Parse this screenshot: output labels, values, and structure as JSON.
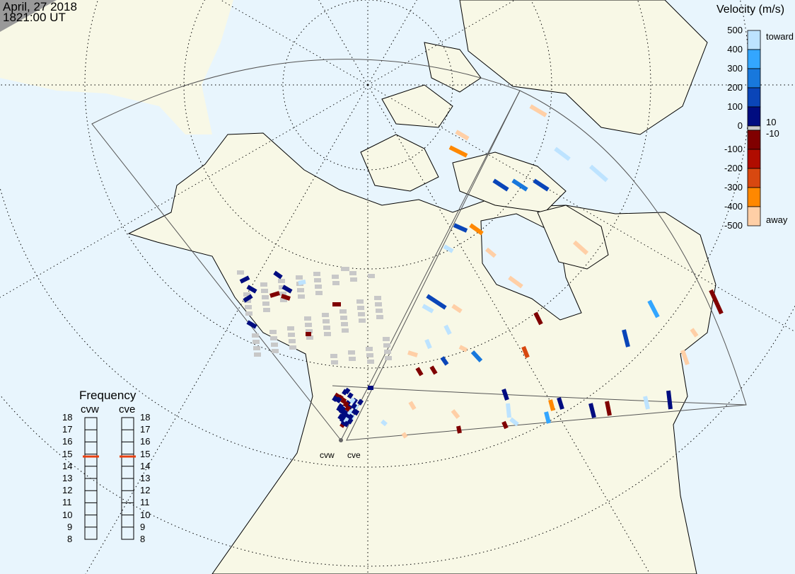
{
  "header": {
    "date": "April, 27 2018",
    "time": "1821:00 UT"
  },
  "colorbar": {
    "title": "Velocity (m/s)",
    "ticks": [
      "500",
      "400",
      "300",
      "200",
      "100",
      "0",
      "-100",
      "-200",
      "-300",
      "-400",
      "-500"
    ],
    "toward_label": "toward",
    "away_label": "away",
    "ground_scatter_upper": "10",
    "ground_scatter_lower": "-10",
    "bins": [
      {
        "range": "400 to 500",
        "color": "#bde3ff"
      },
      {
        "range": "300 to 400",
        "color": "#33a6ff"
      },
      {
        "range": "200 to 300",
        "color": "#1878dc"
      },
      {
        "range": "100 to 200",
        "color": "#0a45b8"
      },
      {
        "range": "10 to 100",
        "color": "#000c80"
      },
      {
        "range": "-10 to 10",
        "color": "#c8c8c8"
      },
      {
        "range": "-100 to -10",
        "color": "#800000"
      },
      {
        "range": "-200 to -100",
        "color": "#b00c00"
      },
      {
        "range": "-300 to -200",
        "color": "#d84810"
      },
      {
        "range": "-400 to -300",
        "color": "#ff8800"
      },
      {
        "range": "-500 to -400",
        "color": "#ffcfa6"
      }
    ]
  },
  "frequency": {
    "title": "Frequency",
    "unit_range": [
      8,
      18
    ],
    "ticks": [
      "18",
      "17",
      "16",
      "15",
      "14",
      "13",
      "12",
      "11",
      "10",
      "9",
      "8"
    ],
    "radars": [
      {
        "name": "cvw",
        "value_mhz": 14.8
      },
      {
        "name": "cve",
        "value_mhz": 14.8
      }
    ],
    "marker_color": "#e84010"
  },
  "radars": {
    "cvw_label": "cvw",
    "cve_label": "cve"
  },
  "colors": {
    "ocean": "#e8f5fd",
    "land": "#f8f8e6",
    "night": "#999999"
  }
}
